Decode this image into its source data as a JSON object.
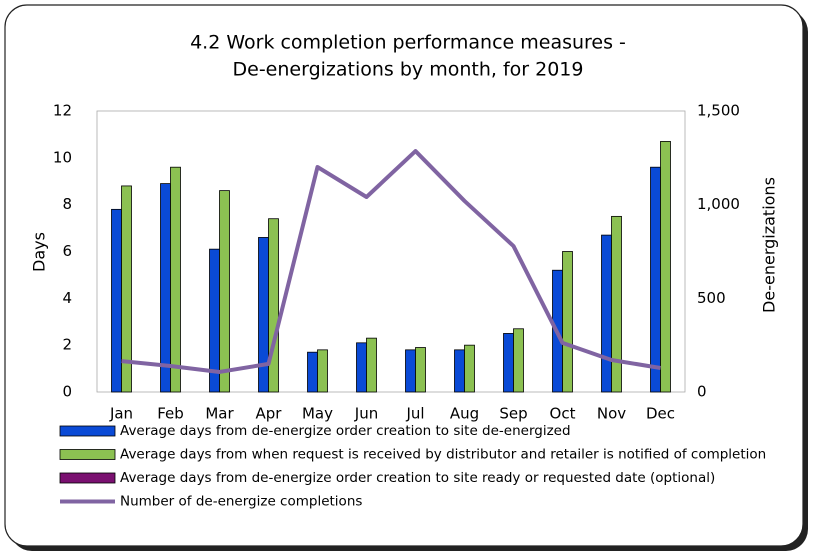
{
  "chart_data": {
    "type": "bar",
    "title": [
      "4.2 Work completion performance measures -",
      "De-energizations by month, for 2019"
    ],
    "ylabel": "Days",
    "y2label": "De-energizations",
    "categories": [
      "Jan",
      "Feb",
      "Mar",
      "Apr",
      "May",
      "Jun",
      "Jul",
      "Aug",
      "Sep",
      "Oct",
      "Nov",
      "Dec"
    ],
    "ylim": [
      0,
      12
    ],
    "yticks": [
      0,
      2,
      4,
      6,
      8,
      10,
      12
    ],
    "y2lim": [
      0,
      1500
    ],
    "y2ticks": [
      0,
      500,
      {
        "value": 1000,
        "label": "1,000"
      },
      {
        "value": 1500,
        "label": "1,500"
      }
    ],
    "series": [
      {
        "name": "Average days from de-energize order creation to site de-energized",
        "type": "bar",
        "color": "#0a4ad6",
        "values": [
          7.8,
          8.9,
          6.1,
          6.6,
          1.7,
          2.1,
          1.8,
          1.8,
          2.5,
          5.2,
          6.7,
          9.6
        ]
      },
      {
        "name": "Average days from when request is received by distributor and retailer is notified of completion",
        "type": "bar",
        "color": "#8cc152",
        "values": [
          8.8,
          9.6,
          8.6,
          7.4,
          1.8,
          2.3,
          1.9,
          2.0,
          2.7,
          6.0,
          7.5,
          10.7
        ]
      },
      {
        "name": "Average days from de-energize order creation to site ready or requested date (optional)",
        "type": "bar",
        "color": "#7a1070",
        "values": [
          null,
          null,
          null,
          null,
          null,
          null,
          null,
          null,
          null,
          null,
          null,
          null
        ]
      },
      {
        "name": "Number of de-energize completions",
        "type": "line",
        "axis": "y2",
        "color": "#8064a2",
        "values": [
          165,
          139,
          107,
          150,
          1201,
          1041,
          1286,
          1020,
          779,
          262,
          171,
          128
        ]
      }
    ]
  }
}
